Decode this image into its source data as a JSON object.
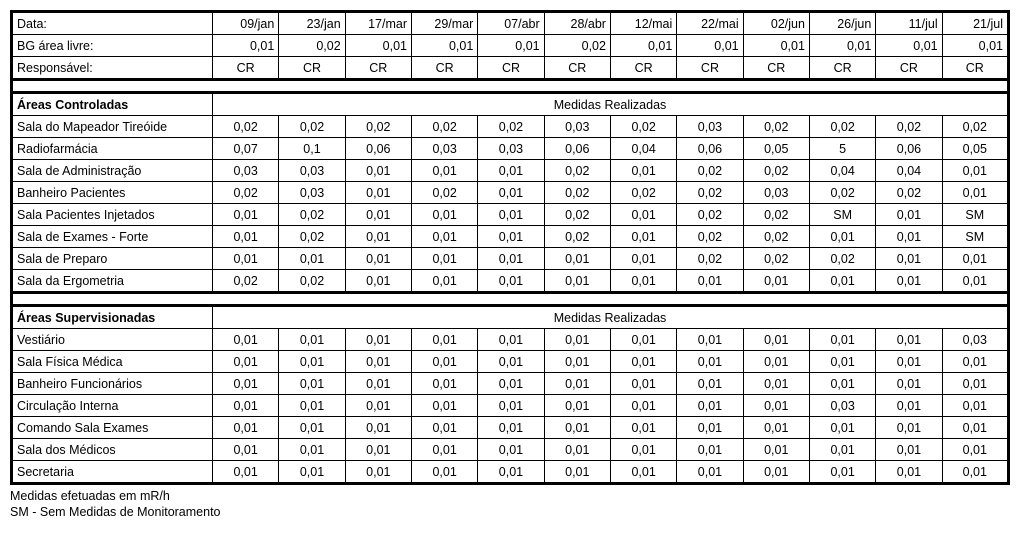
{
  "header": {
    "rows": [
      {
        "label": "Data:",
        "values": [
          "09/jan",
          "23/jan",
          "17/mar",
          "29/mar",
          "07/abr",
          "28/abr",
          "12/mai",
          "22/mai",
          "02/jun",
          "26/jun",
          "11/jul",
          "21/jul"
        ]
      },
      {
        "label": "BG área livre:",
        "values": [
          "0,01",
          "0,02",
          "0,01",
          "0,01",
          "0,01",
          "0,02",
          "0,01",
          "0,01",
          "0,01",
          "0,01",
          "0,01",
          "0,01"
        ]
      },
      {
        "label": "Responsável:",
        "values": [
          "CR",
          "CR",
          "CR",
          "CR",
          "CR",
          "CR",
          "CR",
          "CR",
          "CR",
          "CR",
          "CR",
          "CR"
        ]
      }
    ]
  },
  "sections": [
    {
      "title": "Áreas Controladas",
      "subtitle": "Medidas Realizadas",
      "rows": [
        {
          "label": "Sala do Mapeador Tireóide",
          "values": [
            "0,02",
            "0,02",
            "0,02",
            "0,02",
            "0,02",
            "0,03",
            "0,02",
            "0,03",
            "0,02",
            "0,02",
            "0,02",
            "0,02"
          ]
        },
        {
          "label": "Radiofarmácia",
          "values": [
            "0,07",
            "0,1",
            "0,06",
            "0,03",
            "0,03",
            "0,06",
            "0,04",
            "0,06",
            "0,05",
            "5",
            "0,06",
            "0,05"
          ]
        },
        {
          "label": "Sala de Administração",
          "values": [
            "0,03",
            "0,03",
            "0,01",
            "0,01",
            "0,01",
            "0,02",
            "0,01",
            "0,02",
            "0,02",
            "0,04",
            "0,04",
            "0,01"
          ]
        },
        {
          "label": "Banheiro Pacientes",
          "values": [
            "0,02",
            "0,03",
            "0,01",
            "0,02",
            "0,01",
            "0,02",
            "0,02",
            "0,02",
            "0,03",
            "0,02",
            "0,02",
            "0,01"
          ]
        },
        {
          "label": "Sala Pacientes Injetados",
          "values": [
            "0,01",
            "0,02",
            "0,01",
            "0,01",
            "0,01",
            "0,02",
            "0,01",
            "0,02",
            "0,02",
            "SM",
            "0,01",
            "SM"
          ]
        },
        {
          "label": "Sala de Exames - Forte",
          "values": [
            "0,01",
            "0,02",
            "0,01",
            "0,01",
            "0,01",
            "0,02",
            "0,01",
            "0,02",
            "0,02",
            "0,01",
            "0,01",
            "SM"
          ]
        },
        {
          "label": "Sala de Preparo",
          "values": [
            "0,01",
            "0,01",
            "0,01",
            "0,01",
            "0,01",
            "0,01",
            "0,01",
            "0,02",
            "0,02",
            "0,02",
            "0,01",
            "0,01"
          ]
        },
        {
          "label": "Sala da Ergometria",
          "values": [
            "0,02",
            "0,02",
            "0,01",
            "0,01",
            "0,01",
            "0,01",
            "0,01",
            "0,01",
            "0,01",
            "0,01",
            "0,01",
            "0,01"
          ]
        }
      ]
    },
    {
      "title": "Áreas Supervisionadas",
      "subtitle": "Medidas Realizadas",
      "rows": [
        {
          "label": "Vestiário",
          "values": [
            "0,01",
            "0,01",
            "0,01",
            "0,01",
            "0,01",
            "0,01",
            "0,01",
            "0,01",
            "0,01",
            "0,01",
            "0,01",
            "0,03"
          ]
        },
        {
          "label": "Sala Física Médica",
          "values": [
            "0,01",
            "0,01",
            "0,01",
            "0,01",
            "0,01",
            "0,01",
            "0,01",
            "0,01",
            "0,01",
            "0,01",
            "0,01",
            "0,01"
          ]
        },
        {
          "label": "Banheiro Funcionários",
          "values": [
            "0,01",
            "0,01",
            "0,01",
            "0,01",
            "0,01",
            "0,01",
            "0,01",
            "0,01",
            "0,01",
            "0,01",
            "0,01",
            "0,01"
          ]
        },
        {
          "label": "Circulação Interna",
          "values": [
            "0,01",
            "0,01",
            "0,01",
            "0,01",
            "0,01",
            "0,01",
            "0,01",
            "0,01",
            "0,01",
            "0,03",
            "0,01",
            "0,01"
          ]
        },
        {
          "label": "Comando Sala Exames",
          "values": [
            "0,01",
            "0,01",
            "0,01",
            "0,01",
            "0,01",
            "0,01",
            "0,01",
            "0,01",
            "0,01",
            "0,01",
            "0,01",
            "0,01"
          ]
        },
        {
          "label": "Sala dos Médicos",
          "values": [
            "0,01",
            "0,01",
            "0,01",
            "0,01",
            "0,01",
            "0,01",
            "0,01",
            "0,01",
            "0,01",
            "0,01",
            "0,01",
            "0,01"
          ]
        },
        {
          "label": "Secretaria",
          "values": [
            "0,01",
            "0,01",
            "0,01",
            "0,01",
            "0,01",
            "0,01",
            "0,01",
            "0,01",
            "0,01",
            "0,01",
            "0,01",
            "0,01"
          ]
        }
      ]
    }
  ],
  "footnotes": [
    "Medidas efetuadas em mR/h",
    "SM - Sem Medidas de Monitoramento"
  ],
  "style": {
    "align": {
      "header0": "right",
      "header1": "right",
      "header2": "center",
      "data": "center"
    }
  }
}
